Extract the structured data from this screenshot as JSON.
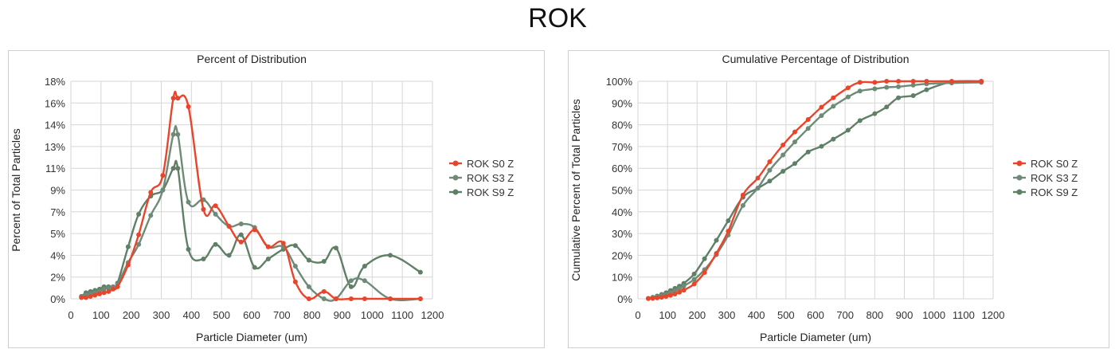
{
  "title": "ROK",
  "colors": {
    "s0": "#e8452c",
    "s3": "#6e8b77",
    "s9": "#5f7f66",
    "grid": "#d6d6d6"
  },
  "chart_data": [
    {
      "type": "line",
      "title": "Percent of Distribution",
      "xlabel": "Particle Diameter (um)",
      "ylabel": "Percent of Total Particles",
      "xlim": [
        0,
        1200
      ],
      "ylim": [
        0,
        18
      ],
      "xticks": [
        0,
        100,
        200,
        300,
        400,
        500,
        600,
        700,
        800,
        900,
        1000,
        1100,
        1200
      ],
      "xtick_labels": [
        "0",
        "100",
        "200",
        "300",
        "400",
        "500",
        "600",
        "700",
        "800",
        "900",
        "1000",
        "1100",
        "1200"
      ],
      "yticks": [
        0,
        2,
        4,
        6,
        8,
        10,
        12,
        14,
        16,
        18
      ],
      "ytick_labels": [
        "0%",
        "2%",
        "4%",
        "5%",
        "7%",
        "9%",
        "11%",
        "13%",
        "14%",
        "16%",
        "18%"
      ],
      "ytick_values": [
        0,
        1.8,
        3.6,
        5.4,
        7.2,
        9,
        10.8,
        12.6,
        14.4,
        16.2,
        18
      ],
      "legend": "right",
      "series": [
        {
          "name": "ROK S0 Z",
          "color": "#e8452c",
          "x": [
            35,
            50,
            65,
            80,
            95,
            110,
            125,
            140,
            155,
            190,
            225,
            265,
            305,
            340,
            355,
            390,
            440,
            480,
            525,
            565,
            610,
            655,
            705,
            745,
            790,
            840,
            880,
            930,
            975,
            1060,
            1160
          ],
          "y": [
            0.1,
            0.1,
            0.2,
            0.3,
            0.4,
            0.5,
            0.6,
            0.8,
            1.0,
            2.8,
            5.3,
            8.8,
            10.2,
            16.6,
            16.6,
            15.9,
            7.4,
            7.7,
            6.0,
            4.7,
            5.7,
            4.3,
            4.6,
            1.4,
            0.0,
            0.6,
            0.0,
            0.0,
            0.0,
            0.0,
            0.0
          ]
        },
        {
          "name": "ROK S3 Z",
          "color": "#6e8b77",
          "x": [
            35,
            50,
            65,
            80,
            95,
            110,
            125,
            140,
            155,
            190,
            225,
            265,
            305,
            340,
            355,
            390,
            440,
            480,
            525,
            565,
            610,
            655,
            705,
            745,
            790,
            840,
            880,
            930,
            975,
            1060,
            1160
          ],
          "y": [
            0.2,
            0.3,
            0.4,
            0.5,
            0.6,
            0.8,
            0.9,
            1.0,
            1.2,
            3.0,
            4.5,
            6.9,
            9.0,
            13.6,
            13.6,
            8.0,
            8.2,
            7.0,
            6.0,
            6.2,
            5.9,
            4.3,
            4.3,
            2.7,
            1.0,
            0.0,
            0.0,
            1.5,
            1.5,
            0.0,
            0.0
          ]
        },
        {
          "name": "ROK S9 Z",
          "color": "#5f7f66",
          "x": [
            35,
            50,
            65,
            80,
            95,
            110,
            125,
            140,
            155,
            190,
            225,
            265,
            305,
            340,
            355,
            390,
            440,
            480,
            525,
            565,
            610,
            655,
            705,
            745,
            790,
            840,
            880,
            930,
            975,
            1060,
            1160
          ],
          "y": [
            0.2,
            0.5,
            0.6,
            0.7,
            0.8,
            1.0,
            1.0,
            1.0,
            1.3,
            4.3,
            7.0,
            8.5,
            9.0,
            10.8,
            10.8,
            4.1,
            3.3,
            4.5,
            3.6,
            5.3,
            2.6,
            3.3,
            4.1,
            4.4,
            3.2,
            3.1,
            4.2,
            1.0,
            2.7,
            3.6,
            2.2
          ]
        }
      ]
    },
    {
      "type": "line",
      "title": "Cumulative Percentage of Distribution",
      "xlabel": "Particle Diameter (um)",
      "ylabel": "Cumulative Percent of Total Particles",
      "xlim": [
        0,
        1200
      ],
      "ylim": [
        0,
        100
      ],
      "xticks": [
        0,
        100,
        200,
        300,
        400,
        500,
        600,
        700,
        800,
        900,
        1000,
        1100,
        1200
      ],
      "xtick_labels": [
        "0",
        "100",
        "200",
        "300",
        "400",
        "500",
        "600",
        "700",
        "800",
        "900",
        "1000",
        "1100",
        "1200"
      ],
      "ytick_labels": [
        "0%",
        "10%",
        "20%",
        "30%",
        "40%",
        "50%",
        "60%",
        "70%",
        "80%",
        "90%",
        "100%"
      ],
      "ytick_values": [
        0,
        10,
        20,
        30,
        40,
        50,
        60,
        70,
        80,
        90,
        100
      ],
      "legend": "right",
      "series": [
        {
          "name": "ROK S0 Z",
          "color": "#e8452c",
          "x": [
            35,
            50,
            65,
            80,
            95,
            110,
            125,
            140,
            155,
            190,
            225,
            265,
            305,
            355,
            405,
            445,
            490,
            530,
            575,
            620,
            660,
            710,
            750,
            800,
            840,
            880,
            930,
            975,
            1060,
            1160
          ],
          "y": [
            0.1,
            0.2,
            0.4,
            0.7,
            1.1,
            1.6,
            2.2,
            3.0,
            4.0,
            6.8,
            12.1,
            20.9,
            31.1,
            47.7,
            55.5,
            63.0,
            70.7,
            76.7,
            82.4,
            88.1,
            92.4,
            97.0,
            99.5,
            99.5,
            100,
            100,
            100,
            100,
            100,
            100
          ]
        },
        {
          "name": "ROK S3 Z",
          "color": "#6e8b77",
          "x": [
            35,
            50,
            65,
            80,
            95,
            110,
            125,
            140,
            155,
            190,
            225,
            265,
            305,
            355,
            405,
            445,
            490,
            530,
            575,
            620,
            660,
            710,
            750,
            800,
            840,
            880,
            930,
            975,
            1060,
            1160
          ],
          "y": [
            0.2,
            0.5,
            0.9,
            1.4,
            2.0,
            2.8,
            3.7,
            4.7,
            5.9,
            8.9,
            13.4,
            20.3,
            29.3,
            42.9,
            50.9,
            59.1,
            66.1,
            72.1,
            78.3,
            84.2,
            88.5,
            92.8,
            95.5,
            96.5,
            97.2,
            97.5,
            98.2,
            98.8,
            99.2,
            99.5
          ]
        },
        {
          "name": "ROK S9 Z",
          "color": "#5f7f66",
          "x": [
            35,
            50,
            65,
            80,
            95,
            110,
            125,
            140,
            155,
            190,
            225,
            265,
            305,
            355,
            405,
            445,
            490,
            530,
            575,
            620,
            660,
            710,
            750,
            800,
            840,
            880,
            930,
            975,
            1060,
            1160
          ],
          "y": [
            0.2,
            0.7,
            1.3,
            2.0,
            2.8,
            3.8,
            4.8,
            5.8,
            7.1,
            11.4,
            18.4,
            26.9,
            35.9,
            46.7,
            50.8,
            54.1,
            58.6,
            62.2,
            67.5,
            70.1,
            73.4,
            77.5,
            81.9,
            85.1,
            88.2,
            92.4,
            93.4,
            96.1,
            99.7,
            100
          ]
        }
      ]
    }
  ]
}
